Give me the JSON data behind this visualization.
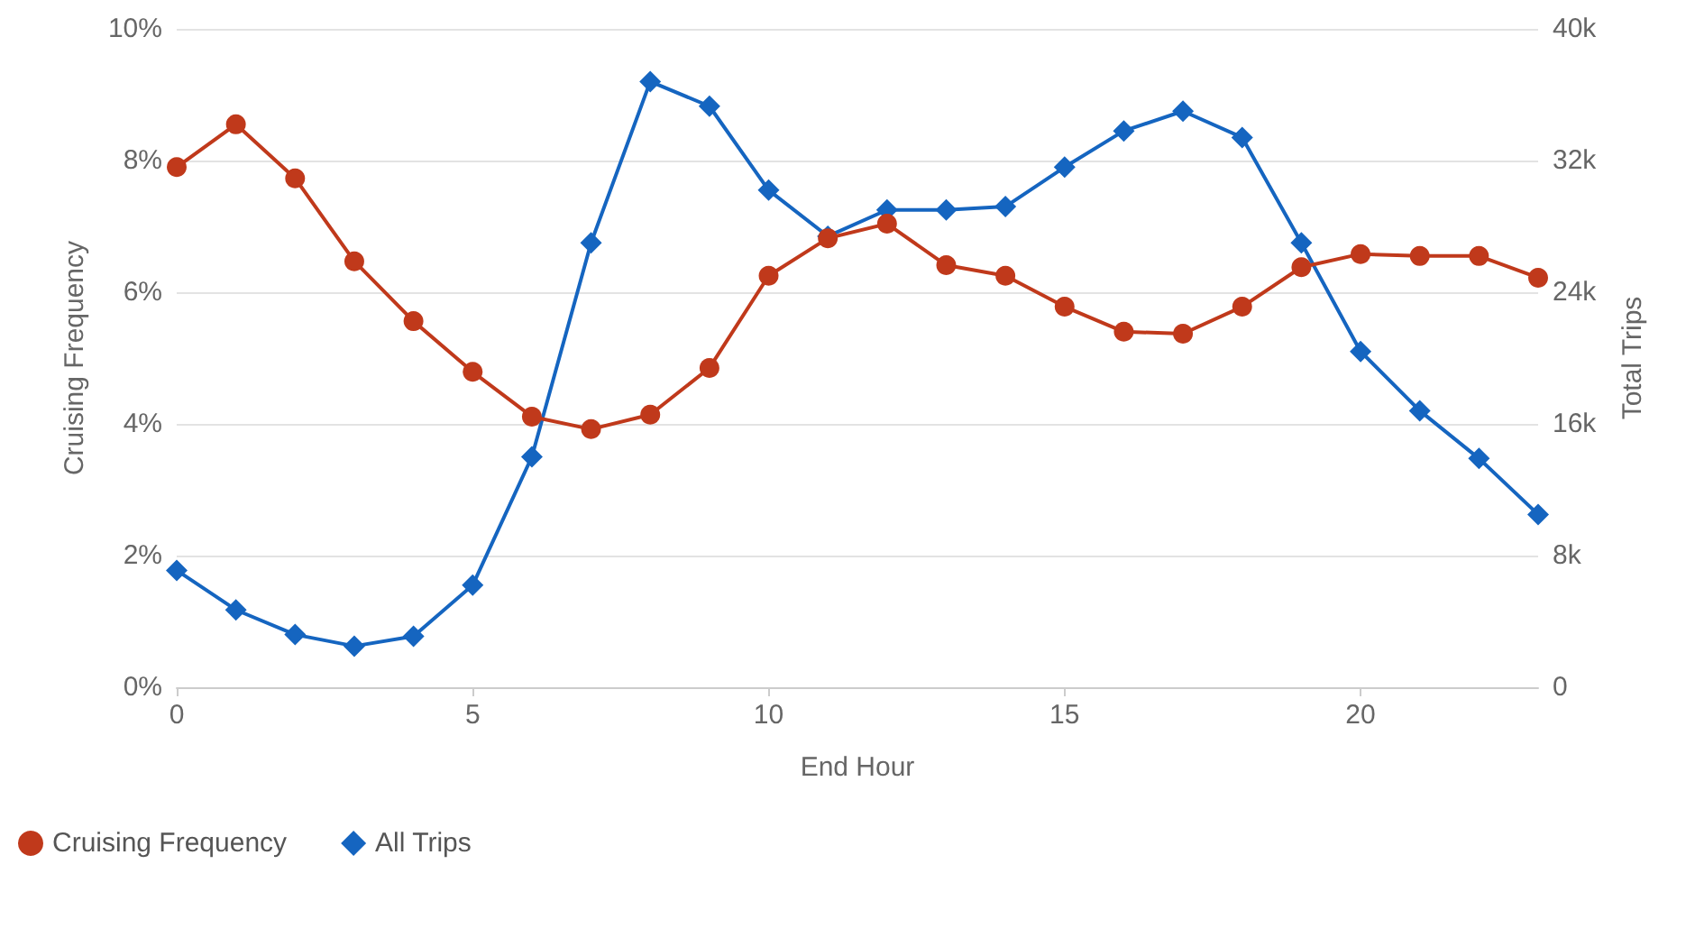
{
  "chart_data": {
    "type": "line",
    "xlabel": "End Hour",
    "ylabel": "Cruising Frequency",
    "y2label": "Total Trips",
    "x": [
      0,
      1,
      2,
      3,
      4,
      5,
      6,
      7,
      8,
      9,
      10,
      11,
      12,
      13,
      14,
      15,
      16,
      17,
      18,
      19,
      20,
      21,
      22,
      23
    ],
    "series": [
      {
        "name": "Cruising Frequency",
        "color": "#c0391b",
        "marker": "circle",
        "values": [
          7.9,
          8.55,
          7.73,
          6.47,
          5.56,
          4.79,
          4.11,
          3.92,
          4.14,
          4.85,
          6.25,
          6.82,
          7.04,
          6.41,
          6.25,
          5.78,
          5.4,
          5.37,
          5.78,
          6.38,
          6.58,
          6.55,
          6.55,
          6.22
        ]
      },
      {
        "name": "All Trips",
        "color": "#1565c0",
        "marker": "diamond",
        "axis": "y2",
        "values": [
          7100,
          4700,
          3200,
          2500,
          3100,
          6200,
          14000,
          27000,
          36800,
          35300,
          30200,
          27400,
          29000,
          29000,
          29200,
          31600,
          33800,
          35000,
          33400,
          27000,
          20400,
          16800,
          13900,
          10500
        ]
      }
    ],
    "xlim": [
      0,
      23
    ],
    "xticks": [
      0,
      5,
      10,
      15,
      20
    ],
    "ylim": [
      0,
      10
    ],
    "yticks": [
      {
        "value": 0,
        "label": "0%"
      },
      {
        "value": 2,
        "label": "2%"
      },
      {
        "value": 4,
        "label": "4%"
      },
      {
        "value": 6,
        "label": "6%"
      },
      {
        "value": 8,
        "label": "8%"
      },
      {
        "value": 10,
        "label": "10%"
      }
    ],
    "y2lim": [
      0,
      40000
    ],
    "y2ticks": [
      0,
      {
        "value": 8000,
        "label": "8k"
      },
      {
        "value": 16000,
        "label": "16k"
      },
      {
        "value": 24000,
        "label": "24k"
      },
      {
        "value": 32000,
        "label": "32k"
      },
      {
        "value": 40000,
        "label": "40k"
      }
    ],
    "grid": "y",
    "legend": "bottom left",
    "line_style": "solid"
  }
}
